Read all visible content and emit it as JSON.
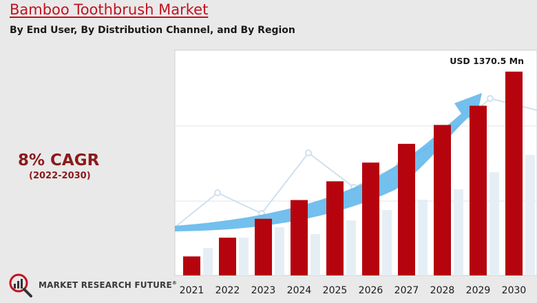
{
  "header": {
    "title": "Bamboo Toothbrush Market",
    "subtitle": "By End User, By Distribution Channel, and By Region"
  },
  "highlight": {
    "cagr": "8% CAGR",
    "period": "(2022-2030)"
  },
  "logo": {
    "name": "MARKET RESEARCH FUTURE",
    "mark": "®"
  },
  "colors": {
    "bar": "#b5040d",
    "title": "#c1121f",
    "cagr": "#8b1a1a",
    "arrow": "#5ab4ea"
  },
  "chart_data": {
    "type": "bar",
    "categories": [
      "2021",
      "2022",
      "2023",
      "2024",
      "2025",
      "2026",
      "2027",
      "2028",
      "2029",
      "2030"
    ],
    "values": [
      128,
      254,
      381,
      507,
      633,
      759,
      885,
      1012,
      1141,
      1370.5
    ],
    "unit": "USD Mn",
    "ylim": [
      0,
      1370.5
    ],
    "annotations": [
      {
        "category": "2030",
        "text": "USD 1370.5 Mn"
      }
    ],
    "grid": true,
    "title": "",
    "xlabel": "",
    "ylabel": ""
  }
}
